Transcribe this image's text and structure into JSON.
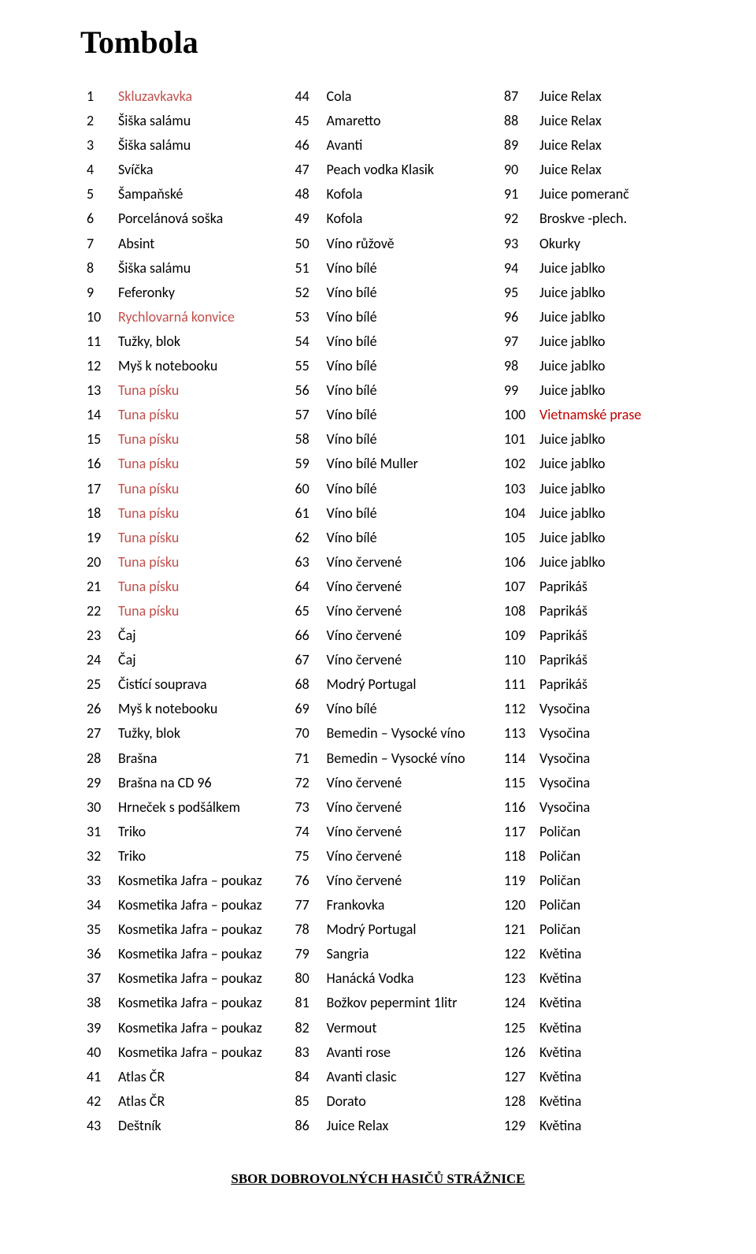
{
  "title": "Tombola",
  "footer": "SBOR DOBROVOLNÝCH HASIČŮ STRÁŽNICE",
  "col1": [
    {
      "n": "1",
      "t": "Skluzavkavka",
      "c": "red"
    },
    {
      "n": "2",
      "t": "Šiška salámu",
      "c": ""
    },
    {
      "n": "3",
      "t": "Šiška salámu",
      "c": ""
    },
    {
      "n": "4",
      "t": "Svíčka",
      "c": ""
    },
    {
      "n": "5",
      "t": "Šampaňské",
      "c": ""
    },
    {
      "n": "6",
      "t": "Porcelánová soška",
      "c": ""
    },
    {
      "n": "7",
      "t": "Absint",
      "c": ""
    },
    {
      "n": "8",
      "t": "Šiška salámu",
      "c": ""
    },
    {
      "n": "9",
      "t": "Feferonky",
      "c": ""
    },
    {
      "n": "10",
      "t": "Rychlovarná konvice",
      "c": "red"
    },
    {
      "n": "11",
      "t": "Tužky, blok",
      "c": ""
    },
    {
      "n": "12",
      "t": "Myš k notebooku",
      "c": ""
    },
    {
      "n": "13",
      "t": "Tuna písku",
      "c": "red"
    },
    {
      "n": "14",
      "t": "Tuna písku",
      "c": "red"
    },
    {
      "n": "15",
      "t": "Tuna písku",
      "c": "red"
    },
    {
      "n": "16",
      "t": "Tuna písku",
      "c": "red"
    },
    {
      "n": "17",
      "t": "Tuna písku",
      "c": "red"
    },
    {
      "n": "18",
      "t": "Tuna písku",
      "c": "red"
    },
    {
      "n": "19",
      "t": "Tuna písku",
      "c": "red"
    },
    {
      "n": "20",
      "t": "Tuna písku",
      "c": "red"
    },
    {
      "n": "21",
      "t": "Tuna písku",
      "c": "red"
    },
    {
      "n": "22",
      "t": "Tuna písku",
      "c": "red"
    },
    {
      "n": "23",
      "t": "Čaj",
      "c": ""
    },
    {
      "n": "24",
      "t": "Čaj",
      "c": ""
    },
    {
      "n": "25",
      "t": "Čistící souprava",
      "c": ""
    },
    {
      "n": "26",
      "t": "Myš k notebooku",
      "c": ""
    },
    {
      "n": "27",
      "t": "Tužky, blok",
      "c": ""
    },
    {
      "n": "28",
      "t": "Brašna",
      "c": ""
    },
    {
      "n": "29",
      "t": "Brašna na CD 96",
      "c": ""
    },
    {
      "n": "30",
      "t": "Hrneček s podšálkem",
      "c": ""
    },
    {
      "n": "31",
      "t": "Triko",
      "c": ""
    },
    {
      "n": "32",
      "t": "Triko",
      "c": ""
    },
    {
      "n": "33",
      "t": "Kosmetika Jafra – poukaz",
      "c": ""
    },
    {
      "n": "34",
      "t": "Kosmetika Jafra – poukaz",
      "c": ""
    },
    {
      "n": "35",
      "t": "Kosmetika Jafra – poukaz",
      "c": ""
    },
    {
      "n": "36",
      "t": "Kosmetika Jafra – poukaz",
      "c": ""
    },
    {
      "n": "37",
      "t": "Kosmetika Jafra – poukaz",
      "c": ""
    },
    {
      "n": "38",
      "t": "Kosmetika Jafra – poukaz",
      "c": ""
    },
    {
      "n": "39",
      "t": "Kosmetika Jafra – poukaz",
      "c": ""
    },
    {
      "n": "40",
      "t": "Kosmetika Jafra – poukaz",
      "c": ""
    },
    {
      "n": "41",
      "t": "Atlas ČR",
      "c": ""
    },
    {
      "n": "42",
      "t": "Atlas ČR",
      "c": ""
    },
    {
      "n": "43",
      "t": "Deštník",
      "c": ""
    }
  ],
  "col2": [
    {
      "n": "44",
      "t": "Cola",
      "c": ""
    },
    {
      "n": "45",
      "t": "Amaretto",
      "c": ""
    },
    {
      "n": "46",
      "t": "Avanti",
      "c": ""
    },
    {
      "n": "47",
      "t": "Peach vodka Klasik",
      "c": ""
    },
    {
      "n": "48",
      "t": "Kofola",
      "c": ""
    },
    {
      "n": "49",
      "t": "Kofola",
      "c": ""
    },
    {
      "n": "50",
      "t": "Víno růžově",
      "c": ""
    },
    {
      "n": "51",
      "t": "Víno bílé",
      "c": ""
    },
    {
      "n": "52",
      "t": "Víno bílé",
      "c": ""
    },
    {
      "n": "53",
      "t": "Víno bílé",
      "c": ""
    },
    {
      "n": "54",
      "t": "Víno bílé",
      "c": ""
    },
    {
      "n": "55",
      "t": "Víno bílé",
      "c": ""
    },
    {
      "n": "56",
      "t": "Víno bílé",
      "c": ""
    },
    {
      "n": "57",
      "t": "Víno bílé",
      "c": ""
    },
    {
      "n": "58",
      "t": "Víno bílé",
      "c": ""
    },
    {
      "n": "59",
      "t": "Víno bílé  Muller",
      "c": ""
    },
    {
      "n": "60",
      "t": "Víno bílé",
      "c": ""
    },
    {
      "n": "61",
      "t": "Víno bílé",
      "c": ""
    },
    {
      "n": "62",
      "t": "Víno bílé",
      "c": ""
    },
    {
      "n": "63",
      "t": "Víno červené",
      "c": ""
    },
    {
      "n": "64",
      "t": "Víno červené",
      "c": ""
    },
    {
      "n": "65",
      "t": "Víno červené",
      "c": ""
    },
    {
      "n": "66",
      "t": "Víno červené",
      "c": ""
    },
    {
      "n": "67",
      "t": "Víno červené",
      "c": ""
    },
    {
      "n": "68",
      "t": "Modrý Portugal",
      "c": ""
    },
    {
      "n": "69",
      "t": "Víno bílé",
      "c": ""
    },
    {
      "n": "70",
      "t": "Bemedin – Vysocké víno",
      "c": ""
    },
    {
      "n": "71",
      "t": "Bemedin – Vysocké víno",
      "c": ""
    },
    {
      "n": "72",
      "t": "Víno červené",
      "c": ""
    },
    {
      "n": "73",
      "t": "Víno červené",
      "c": ""
    },
    {
      "n": "74",
      "t": "Víno červené",
      "c": ""
    },
    {
      "n": "75",
      "t": "Víno červené",
      "c": ""
    },
    {
      "n": "76",
      "t": "Víno červené",
      "c": ""
    },
    {
      "n": "77",
      "t": "Frankovka",
      "c": ""
    },
    {
      "n": "78",
      "t": "Modrý Portugal",
      "c": ""
    },
    {
      "n": "79",
      "t": "Sangria",
      "c": ""
    },
    {
      "n": "80",
      "t": "Hanácká Vodka",
      "c": ""
    },
    {
      "n": "81",
      "t": "Božkov pepermint 1litr",
      "c": ""
    },
    {
      "n": "82",
      "t": "Vermout",
      "c": ""
    },
    {
      "n": "83",
      "t": "Avanti rose",
      "c": ""
    },
    {
      "n": "84",
      "t": "Avanti clasic",
      "c": ""
    },
    {
      "n": "85",
      "t": "Dorato",
      "c": ""
    },
    {
      "n": "86",
      "t": "Juice Relax",
      "c": ""
    }
  ],
  "col3": [
    {
      "n": "87",
      "t": "Juice Relax",
      "c": ""
    },
    {
      "n": "88",
      "t": "Juice Relax",
      "c": ""
    },
    {
      "n": "89",
      "t": "Juice Relax",
      "c": ""
    },
    {
      "n": "90",
      "t": "Juice Relax",
      "c": ""
    },
    {
      "n": "91",
      "t": "Juice pomeranč",
      "c": ""
    },
    {
      "n": "92",
      "t": "Broskve -plech.",
      "c": ""
    },
    {
      "n": "93",
      "t": "Okurky",
      "c": ""
    },
    {
      "n": "94",
      "t": "Juice jablko",
      "c": ""
    },
    {
      "n": "95",
      "t": "Juice jablko",
      "c": ""
    },
    {
      "n": "96",
      "t": "Juice jablko",
      "c": ""
    },
    {
      "n": "97",
      "t": "Juice jablko",
      "c": ""
    },
    {
      "n": "98",
      "t": "Juice jablko",
      "c": ""
    },
    {
      "n": "99",
      "t": "Juice jablko",
      "c": ""
    },
    {
      "n": "100",
      "t": "Vietnamské prase",
      "c": "red-dark"
    },
    {
      "n": "101",
      "t": "Juice jablko",
      "c": ""
    },
    {
      "n": "102",
      "t": "Juice jablko",
      "c": ""
    },
    {
      "n": "103",
      "t": "Juice jablko",
      "c": ""
    },
    {
      "n": "104",
      "t": "Juice jablko",
      "c": ""
    },
    {
      "n": "105",
      "t": "Juice jablko",
      "c": ""
    },
    {
      "n": "106",
      "t": "Juice jablko",
      "c": ""
    },
    {
      "n": "107",
      "t": "Paprikáš",
      "c": ""
    },
    {
      "n": "108",
      "t": "Paprikáš",
      "c": ""
    },
    {
      "n": "109",
      "t": "Paprikáš",
      "c": ""
    },
    {
      "n": "110",
      "t": "Paprikáš",
      "c": ""
    },
    {
      "n": "111",
      "t": "Paprikáš",
      "c": ""
    },
    {
      "n": "112",
      "t": "Vysočina",
      "c": ""
    },
    {
      "n": "113",
      "t": "Vysočina",
      "c": ""
    },
    {
      "n": "114",
      "t": "Vysočina",
      "c": ""
    },
    {
      "n": "115",
      "t": "Vysočina",
      "c": ""
    },
    {
      "n": "116",
      "t": "Vysočina",
      "c": ""
    },
    {
      "n": "117",
      "t": "Poličan",
      "c": ""
    },
    {
      "n": "118",
      "t": "Poličan",
      "c": ""
    },
    {
      "n": "119",
      "t": "Poličan",
      "c": ""
    },
    {
      "n": "120",
      "t": "Poličan",
      "c": ""
    },
    {
      "n": "121",
      "t": "Poličan",
      "c": ""
    },
    {
      "n": "122",
      "t": "Květina",
      "c": ""
    },
    {
      "n": "123",
      "t": "Květina",
      "c": ""
    },
    {
      "n": "124",
      "t": "Květina",
      "c": ""
    },
    {
      "n": "125",
      "t": "Květina",
      "c": ""
    },
    {
      "n": "126",
      "t": "Květina",
      "c": ""
    },
    {
      "n": "127",
      "t": "Květina",
      "c": ""
    },
    {
      "n": "128",
      "t": "Květina",
      "c": ""
    },
    {
      "n": "129",
      "t": "Květina",
      "c": ""
    }
  ]
}
